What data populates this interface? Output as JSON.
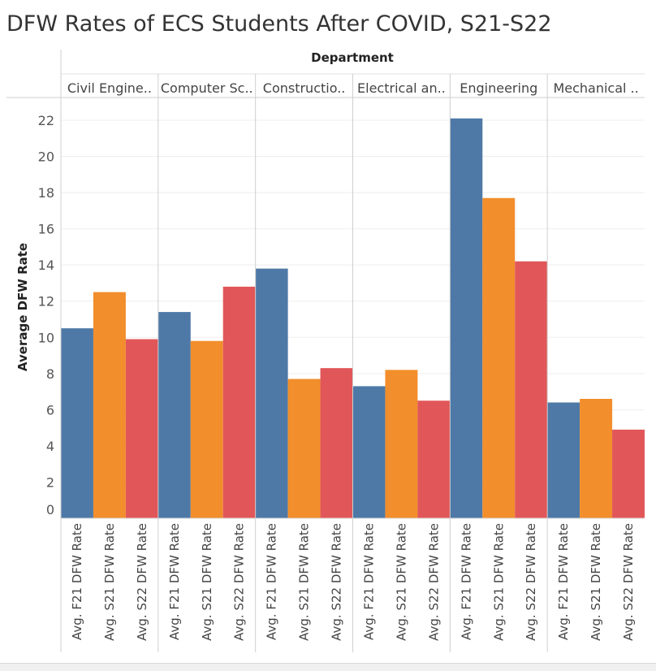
{
  "title": "DFW Rates of ECS Students After COVID, S21-S22",
  "chart_data": {
    "type": "bar",
    "column_header": "Department",
    "ylabel": "Average DFW Rate",
    "ylim": [
      0,
      22
    ],
    "yticks": [
      0,
      2,
      4,
      6,
      8,
      10,
      12,
      14,
      16,
      18,
      20,
      22
    ],
    "measures": [
      "Avg. F21 DFW Rate",
      "Avg. S21 DFW Rate",
      "Avg. S22 DFW Rate"
    ],
    "colors": [
      "#4e79a7",
      "#f28e2b",
      "#e15759"
    ],
    "categories": [
      "Civil Engine..",
      "Computer Sc..",
      "Constructio..",
      "Electrical an..",
      "Engineering",
      "Mechanical .."
    ],
    "series": [
      {
        "measure": "Avg. F21 DFW Rate",
        "values": [
          10.5,
          11.4,
          13.8,
          7.3,
          22.1,
          6.4
        ]
      },
      {
        "measure": "Avg. S21 DFW Rate",
        "values": [
          12.5,
          9.8,
          7.7,
          8.2,
          17.7,
          6.6
        ]
      },
      {
        "measure": "Avg. S22 DFW Rate",
        "values": [
          9.9,
          12.8,
          8.3,
          6.5,
          14.2,
          4.9
        ]
      }
    ],
    "grid": "horizontal",
    "legend": "none"
  }
}
